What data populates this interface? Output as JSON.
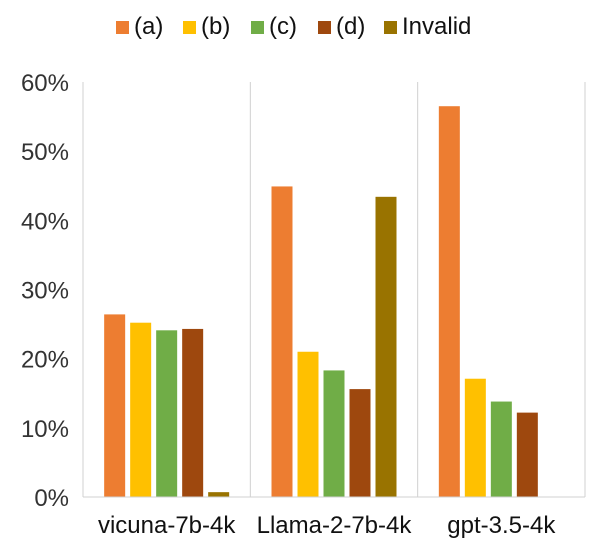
{
  "chart_data": {
    "type": "bar",
    "title": "",
    "xlabel": "",
    "ylabel": "",
    "categories": [
      "vicuna-7b-4k",
      "Llama-2-7b-4k",
      "gpt-3.5-4k"
    ],
    "series": [
      {
        "name": "(a)",
        "color": "#ED7D31",
        "values": [
          26.4,
          44.9,
          56.5
        ]
      },
      {
        "name": "(b)",
        "color": "#FFC000",
        "values": [
          25.2,
          21.0,
          17.1
        ]
      },
      {
        "name": "(c)",
        "color": "#70AD47",
        "values": [
          24.1,
          18.3,
          13.8
        ]
      },
      {
        "name": "(d)",
        "color": "#9E480E",
        "values": [
          24.3,
          15.6,
          12.2
        ]
      },
      {
        "name": "Invalid",
        "color": "#997300",
        "values": [
          0.7,
          43.4,
          0.0
        ]
      }
    ],
    "ylim": [
      0,
      60
    ],
    "yticks": [
      0,
      10,
      20,
      30,
      40,
      50,
      60
    ],
    "ytick_labels": [
      "0%",
      "10%",
      "20%",
      "30%",
      "40%",
      "50%",
      "60%"
    ],
    "grid": false,
    "category_separators": true,
    "legend": "top-center"
  }
}
